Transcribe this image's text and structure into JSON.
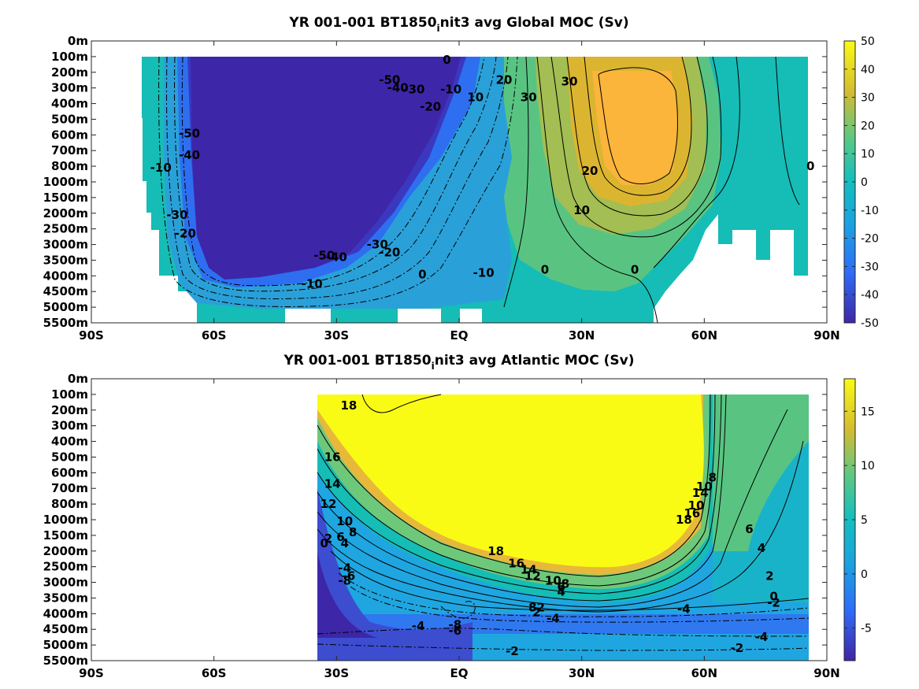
{
  "chart_data": [
    {
      "type": "heatmap",
      "title_main": "YR 001-001 BT1850",
      "title_sub": "i",
      "title_rest": "nit3 avg  Global MOC (Sv)",
      "x_ticks": [
        "90S",
        "60S",
        "30S",
        "EQ",
        "30N",
        "60N",
        "90N"
      ],
      "xlim": [
        -90,
        90
      ],
      "y_ticks": [
        "0m",
        "100m",
        "200m",
        "300m",
        "400m",
        "500m",
        "600m",
        "700m",
        "800m",
        "1000m",
        "1500m",
        "2000m",
        "2500m",
        "3000m",
        "3500m",
        "4000m",
        "4500m",
        "5000m",
        "5500m"
      ],
      "colorbar": {
        "min": -50,
        "max": 50,
        "ticks": [
          "50",
          "40",
          "30",
          "20",
          "10",
          "0",
          "-10",
          "-20",
          "-30",
          "-40",
          "-50"
        ]
      },
      "contour_labels": [
        {
          "text": "-50",
          "x": -66,
          "y": 5.9
        },
        {
          "text": "-40",
          "x": -66,
          "y": 7.3
        },
        {
          "text": "-10",
          "x": -73,
          "y": 8.1
        },
        {
          "text": "-30",
          "x": -69,
          "y": 11.1
        },
        {
          "text": "-20",
          "x": -67,
          "y": 12.3
        },
        {
          "text": "-50",
          "x": -17,
          "y": 2.5
        },
        {
          "text": "-40",
          "x": -15,
          "y": 3.0
        },
        {
          "text": "-30",
          "x": -11,
          "y": 3.1
        },
        {
          "text": "-20",
          "x": -7,
          "y": 4.2
        },
        {
          "text": "-10",
          "x": -2,
          "y": 3.1
        },
        {
          "text": "0",
          "x": -3,
          "y": 1.2
        },
        {
          "text": "10",
          "x": 4,
          "y": 3.6
        },
        {
          "text": "20",
          "x": 11,
          "y": 2.5
        },
        {
          "text": "30",
          "x": 17,
          "y": 3.6
        },
        {
          "text": "30",
          "x": 27,
          "y": 2.6
        },
        {
          "text": "20",
          "x": 32,
          "y": 8.3
        },
        {
          "text": "10",
          "x": 30,
          "y": 10.8
        },
        {
          "text": "0",
          "x": 86,
          "y": 8.0
        },
        {
          "text": "-50",
          "x": -33,
          "y": 13.7
        },
        {
          "text": "-40",
          "x": -30,
          "y": 13.8
        },
        {
          "text": "-30",
          "x": -20,
          "y": 13.0
        },
        {
          "text": "-20",
          "x": -17,
          "y": 13.5
        },
        {
          "text": "-10",
          "x": -36,
          "y": 15.5
        },
        {
          "text": "0",
          "x": -9,
          "y": 14.9
        },
        {
          "text": "-10",
          "x": 6,
          "y": 14.8
        },
        {
          "text": "0",
          "x": 21,
          "y": 14.6
        },
        {
          "text": "0",
          "x": 43,
          "y": 14.6
        }
      ]
    },
    {
      "type": "heatmap",
      "title_main": "YR 001-001 BT1850",
      "title_sub": "i",
      "title_rest": "nit3 avg  Atlantic MOC (Sv)",
      "x_ticks": [
        "90S",
        "60S",
        "30S",
        "EQ",
        "30N",
        "60N",
        "90N"
      ],
      "xlim": [
        -90,
        90
      ],
      "y_ticks": [
        "0m",
        "100m",
        "200m",
        "300m",
        "400m",
        "500m",
        "600m",
        "700m",
        "800m",
        "1000m",
        "1500m",
        "2000m",
        "2500m",
        "3000m",
        "3500m",
        "4000m",
        "4500m",
        "5000m",
        "5500m"
      ],
      "colorbar": {
        "min": -8,
        "max": 18,
        "ticks": [
          "15",
          "10",
          "5",
          "0",
          "-5"
        ]
      },
      "contour_labels": [
        {
          "text": "18",
          "x": -27,
          "y": 1.7
        },
        {
          "text": "16",
          "x": -31,
          "y": 5.0
        },
        {
          "text": "14",
          "x": -31,
          "y": 6.7
        },
        {
          "text": "12",
          "x": -32,
          "y": 8.0
        },
        {
          "text": "10",
          "x": -28,
          "y": 9.1
        },
        {
          "text": "8",
          "x": -26,
          "y": 9.8
        },
        {
          "text": "6",
          "x": -29,
          "y": 10.1
        },
        {
          "text": "4",
          "x": -28,
          "y": 10.5
        },
        {
          "text": "2",
          "x": -32,
          "y": 10.2
        },
        {
          "text": "0",
          "x": -33,
          "y": 10.5
        },
        {
          "text": "-4",
          "x": -28,
          "y": 12.1
        },
        {
          "text": "-6",
          "x": -27,
          "y": 12.6
        },
        {
          "text": "-8",
          "x": -28,
          "y": 12.9
        },
        {
          "text": "18",
          "x": 9,
          "y": 11.0
        },
        {
          "text": "16",
          "x": 14,
          "y": 11.8
        },
        {
          "text": "14",
          "x": 17,
          "y": 12.2
        },
        {
          "text": "12",
          "x": 18,
          "y": 12.6
        },
        {
          "text": "10",
          "x": 23,
          "y": 12.9
        },
        {
          "text": "8",
          "x": 26,
          "y": 13.1
        },
        {
          "text": "6",
          "x": 25,
          "y": 13.3
        },
        {
          "text": "4",
          "x": 25,
          "y": 13.6
        },
        {
          "text": "2",
          "x": 20,
          "y": 14.6
        },
        {
          "text": "8",
          "x": 18,
          "y": 14.6
        },
        {
          "text": "2",
          "x": 19,
          "y": 14.9
        },
        {
          "text": "-4",
          "x": 23,
          "y": 15.3
        },
        {
          "text": "-4",
          "x": -10,
          "y": 15.8
        },
        {
          "text": "-8",
          "x": -1,
          "y": 15.7
        },
        {
          "text": "-6",
          "x": -1,
          "y": 16.1
        },
        {
          "text": "-2",
          "x": 13,
          "y": 17.4
        },
        {
          "text": "18",
          "x": 55,
          "y": 9.0
        },
        {
          "text": "16",
          "x": 57,
          "y": 8.6
        },
        {
          "text": "10",
          "x": 58,
          "y": 8.1
        },
        {
          "text": "14",
          "x": 59,
          "y": 7.3
        },
        {
          "text": "10",
          "x": 60,
          "y": 6.9
        },
        {
          "text": "8",
          "x": 62,
          "y": 6.3
        },
        {
          "text": "6",
          "x": 71,
          "y": 9.6
        },
        {
          "text": "4",
          "x": 74,
          "y": 10.8
        },
        {
          "text": "2",
          "x": 76,
          "y": 12.6
        },
        {
          "text": "0",
          "x": 77,
          "y": 13.9
        },
        {
          "text": "-2",
          "x": 77,
          "y": 14.3
        },
        {
          "text": "-4",
          "x": 55,
          "y": 14.7
        },
        {
          "text": "-4",
          "x": 74,
          "y": 16.5
        },
        {
          "text": "-2",
          "x": 68,
          "y": 17.2
        }
      ]
    }
  ]
}
